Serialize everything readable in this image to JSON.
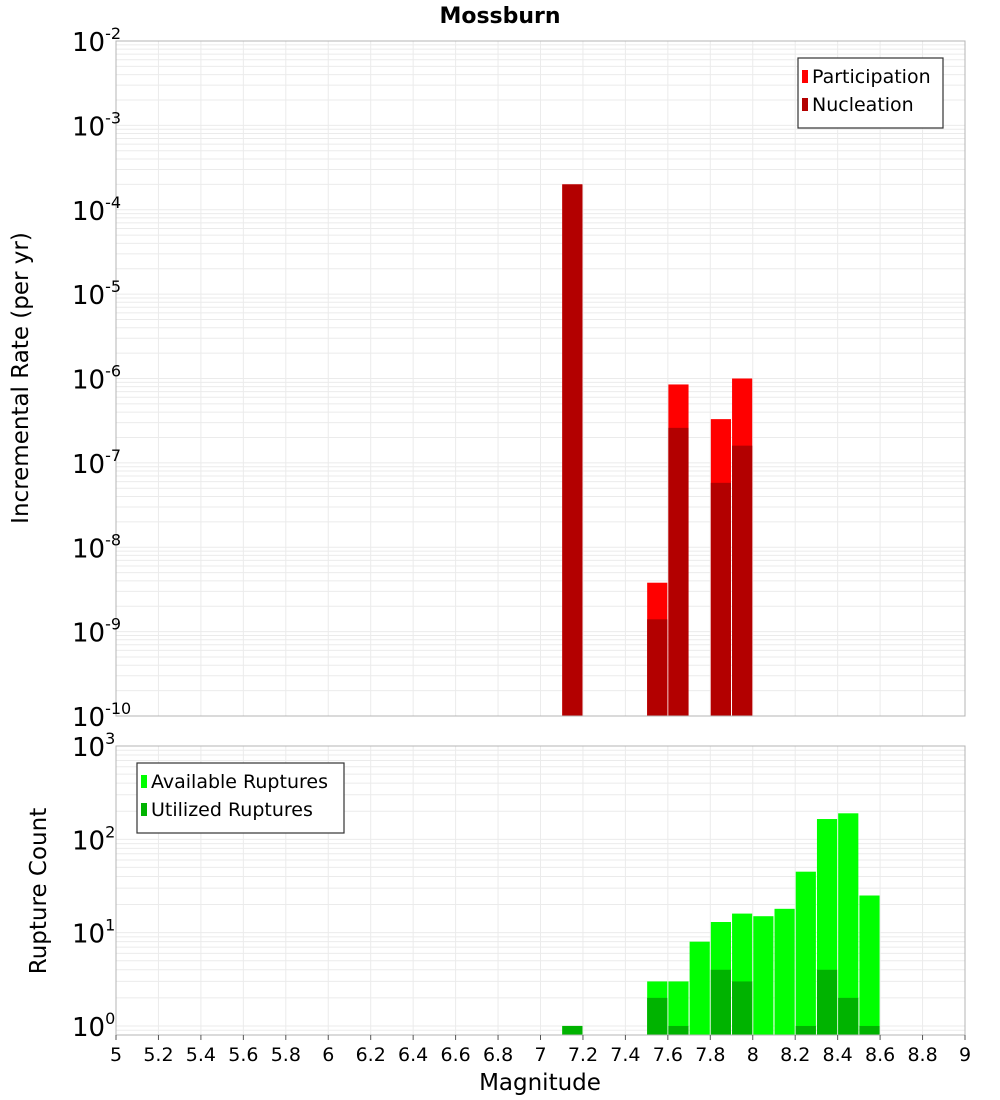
{
  "chart_data": [
    {
      "type": "bar",
      "panel": "top",
      "title": "Mossburn",
      "xlabel": "",
      "ylabel": "Incremental Rate (per yr)",
      "yscale": "log",
      "ylim": [
        1e-10,
        0.01
      ],
      "xlim": [
        5,
        9
      ],
      "bin_width": 0.1,
      "grid": true,
      "legend_position": "top-right",
      "y_tick_exponents": [
        "-2",
        "-3",
        "-4",
        "-5",
        "-6",
        "-7",
        "-8",
        "-9",
        "-10"
      ],
      "series": [
        {
          "name": "Participation",
          "color": "#ff0000",
          "x": [
            7.15,
            7.55,
            7.65,
            7.85,
            7.95
          ],
          "values": [
            0.0002,
            3.8e-09,
            8.5e-07,
            3.3e-07,
            1e-06
          ]
        },
        {
          "name": "Nucleation",
          "color": "#b30000",
          "x": [
            7.15,
            7.55,
            7.65,
            7.85,
            7.95
          ],
          "values": [
            0.0002,
            1.4e-09,
            2.6e-07,
            5.8e-08,
            1.6e-07
          ]
        }
      ]
    },
    {
      "type": "bar",
      "panel": "bottom",
      "title": "",
      "xlabel": "Magnitude",
      "ylabel": "Rupture Count",
      "yscale": "log",
      "ylim": [
        0.8,
        1000
      ],
      "xlim": [
        5,
        9
      ],
      "bin_width": 0.1,
      "grid": true,
      "legend_position": "top-left",
      "y_tick_exponents": [
        "3",
        "2",
        "1",
        "0"
      ],
      "x_ticks": [
        "5",
        "5.2",
        "5.4",
        "5.6",
        "5.8",
        "6",
        "6.2",
        "6.4",
        "6.6",
        "6.8",
        "7",
        "7.2",
        "7.4",
        "7.6",
        "7.8",
        "8",
        "8.2",
        "8.4",
        "8.6",
        "8.8",
        "9"
      ],
      "series": [
        {
          "name": "Available Ruptures",
          "color": "#00ff00",
          "x": [
            7.15,
            7.55,
            7.65,
            7.75,
            7.85,
            7.95,
            8.05,
            8.15,
            8.25,
            8.35,
            8.45,
            8.55
          ],
          "values": [
            1,
            3,
            3,
            8,
            13,
            16,
            15,
            18,
            45,
            165,
            190,
            25
          ]
        },
        {
          "name": "Utilized Ruptures",
          "color": "#00b300",
          "x": [
            7.15,
            7.55,
            7.65,
            7.75,
            7.85,
            7.95,
            8.05,
            8.15,
            8.25,
            8.35,
            8.45,
            8.55
          ],
          "values": [
            1,
            2,
            1,
            0,
            4,
            3,
            0,
            0,
            1,
            4,
            2,
            1
          ]
        }
      ]
    }
  ],
  "colors": {
    "grid": "#ebebeb",
    "frame": "#b4b4b4"
  }
}
